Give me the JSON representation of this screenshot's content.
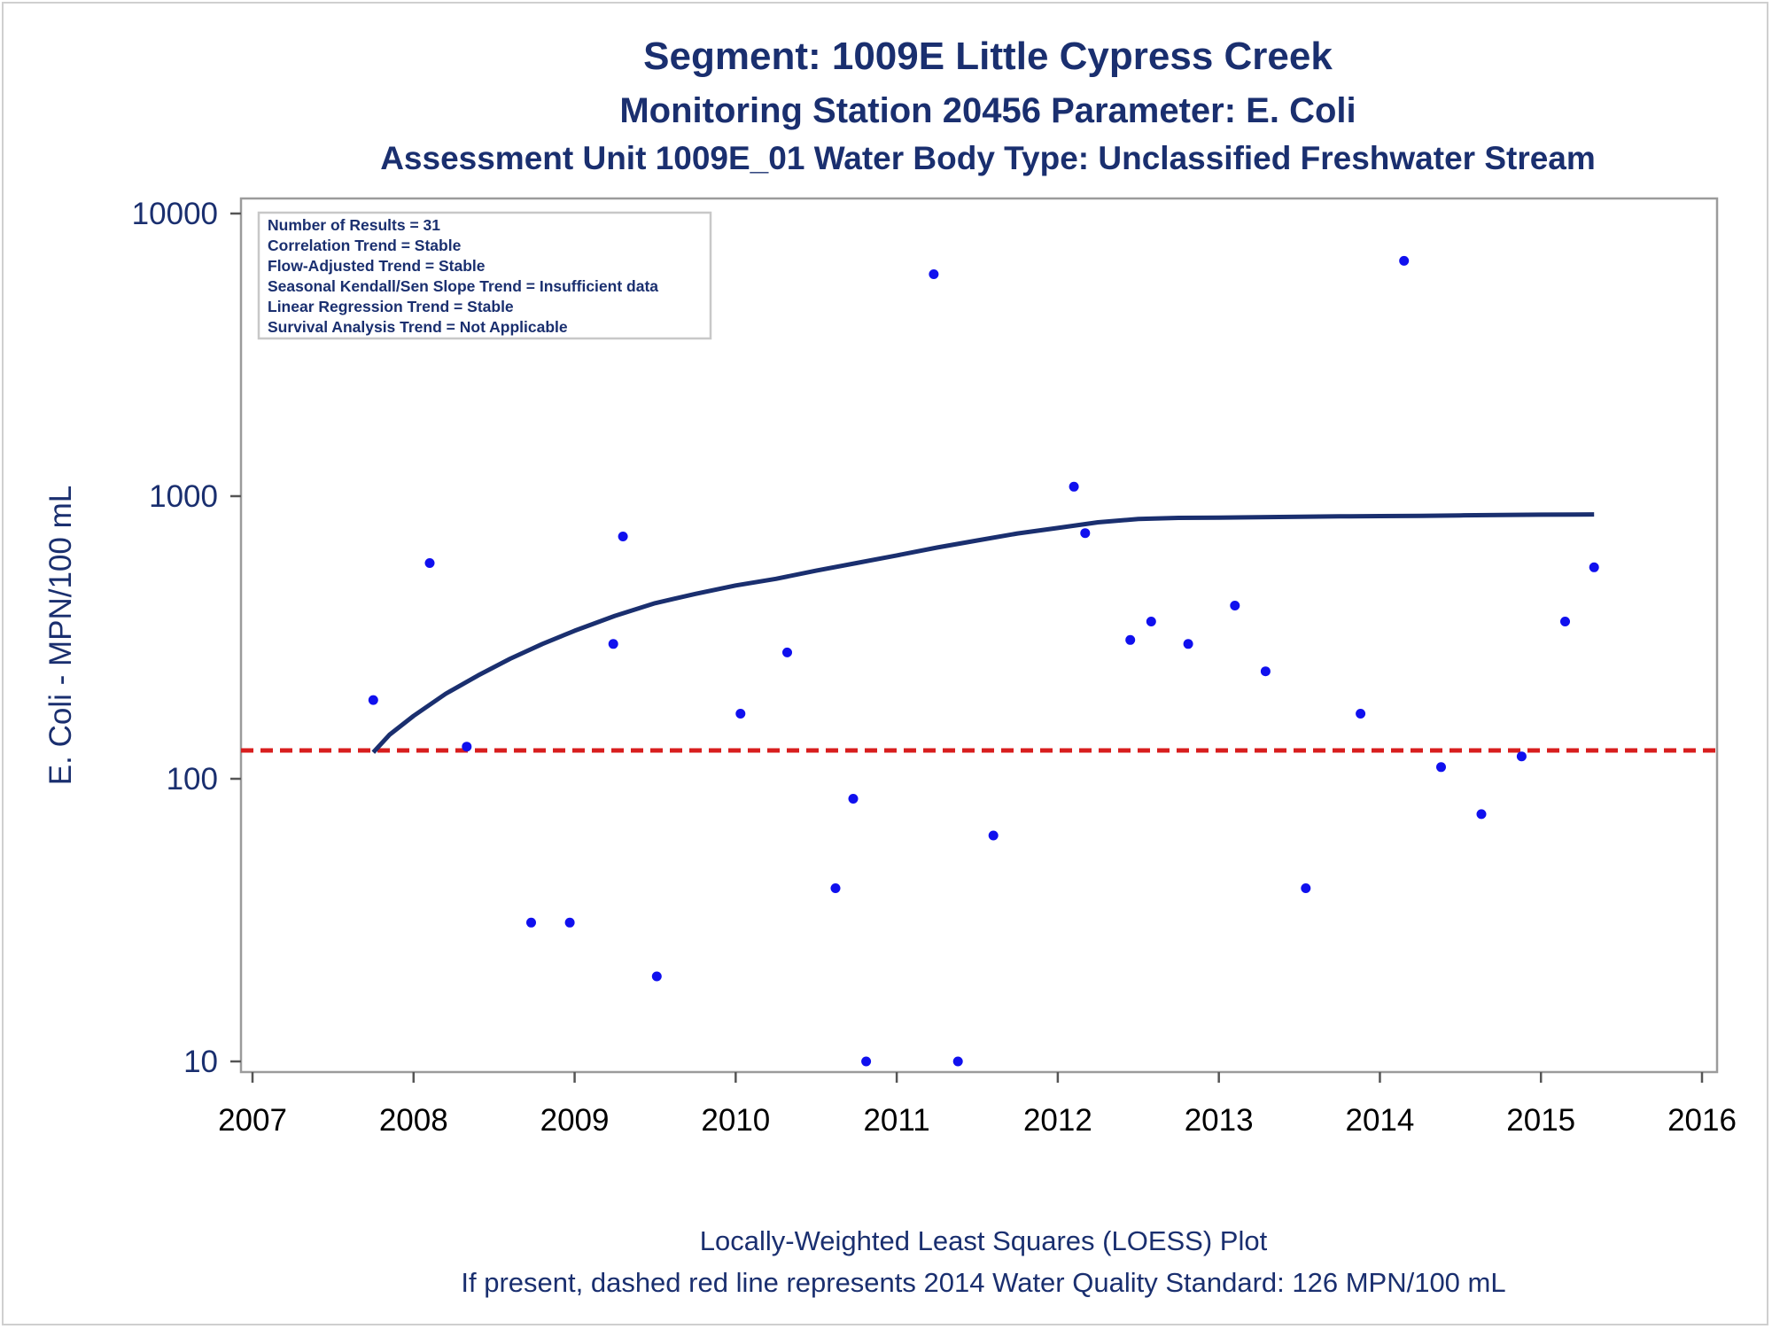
{
  "chart_data": {
    "type": "scatter",
    "title": "Segment: 1009E  Little Cypress Creek",
    "subtitle": "Monitoring Station 20456 Parameter: E. Coli",
    "subtitle2": "Assessment Unit 1009E_01   Water Body Type: Unclassified Freshwater Stream",
    "ylabel": "E. Coli - MPN/100 mL",
    "yscale": "log",
    "ylim": [
      10,
      10000
    ],
    "xlim": [
      2007,
      2016
    ],
    "x_ticks": [
      "2007",
      "2008",
      "2009",
      "2010",
      "2011",
      "2012",
      "2013",
      "2014",
      "2015",
      "2016"
    ],
    "y_ticks": [
      "10",
      "100",
      "1000",
      "10000"
    ],
    "grid": false,
    "info_box": {
      "placement": "top-left",
      "lines": [
        "Number of Results = 31",
        "Correlation Trend = Stable",
        "Flow-Adjusted Trend = Stable",
        "Seasonal Kendall/Sen Slope Trend = Insufficient data",
        "Linear Regression Trend = Stable",
        "Survival Analysis Trend = Not Applicable"
      ]
    },
    "points": {
      "color": "#1010ee",
      "data": [
        {
          "x": 2007.75,
          "y": 190
        },
        {
          "x": 2008.1,
          "y": 580
        },
        {
          "x": 2008.33,
          "y": 130
        },
        {
          "x": 2008.73,
          "y": 31
        },
        {
          "x": 2008.97,
          "y": 31
        },
        {
          "x": 2009.24,
          "y": 300
        },
        {
          "x": 2009.3,
          "y": 720
        },
        {
          "x": 2009.51,
          "y": 20
        },
        {
          "x": 2010.03,
          "y": 170
        },
        {
          "x": 2010.32,
          "y": 280
        },
        {
          "x": 2010.62,
          "y": 41
        },
        {
          "x": 2010.73,
          "y": 85
        },
        {
          "x": 2010.81,
          "y": 10
        },
        {
          "x": 2011.23,
          "y": 6100
        },
        {
          "x": 2011.38,
          "y": 10
        },
        {
          "x": 2011.6,
          "y": 63
        },
        {
          "x": 2012.1,
          "y": 1080
        },
        {
          "x": 2012.17,
          "y": 740
        },
        {
          "x": 2012.45,
          "y": 310
        },
        {
          "x": 2012.58,
          "y": 360
        },
        {
          "x": 2012.81,
          "y": 300
        },
        {
          "x": 2013.1,
          "y": 410
        },
        {
          "x": 2013.29,
          "y": 240
        },
        {
          "x": 2013.54,
          "y": 41
        },
        {
          "x": 2013.88,
          "y": 170
        },
        {
          "x": 2014.15,
          "y": 6800
        },
        {
          "x": 2014.38,
          "y": 110
        },
        {
          "x": 2014.63,
          "y": 75
        },
        {
          "x": 2014.88,
          "y": 120
        },
        {
          "x": 2015.15,
          "y": 360
        },
        {
          "x": 2015.33,
          "y": 560
        }
      ]
    },
    "loess": {
      "color": "#1a2f6f",
      "x": [
        2007.75,
        2007.85,
        2008.0,
        2008.2,
        2008.4,
        2008.6,
        2008.8,
        2009.0,
        2009.25,
        2009.5,
        2009.75,
        2010.0,
        2010.25,
        2010.5,
        2010.75,
        2011.0,
        2011.25,
        2011.5,
        2011.75,
        2012.0,
        2012.25,
        2012.5,
        2012.75,
        2013.0,
        2013.25,
        2013.5,
        2013.75,
        2014.0,
        2014.25,
        2014.5,
        2014.75,
        2015.0,
        2015.33
      ],
      "y": [
        124,
        143,
        167,
        200,
        232,
        266,
        300,
        334,
        377,
        418,
        451,
        483,
        510,
        545,
        580,
        617,
        658,
        697,
        738,
        772,
        808,
        830,
        838,
        840,
        843,
        846,
        848,
        850,
        852,
        855,
        858,
        860,
        862
      ]
    },
    "standard": {
      "value": 126,
      "color": "#d81e1e"
    },
    "footnote": "Locally-Weighted Least Squares (LOESS) Plot",
    "footnote2": "If present, dashed red line represents 2014 Water Quality Standard: 126 MPN/100 mL"
  }
}
